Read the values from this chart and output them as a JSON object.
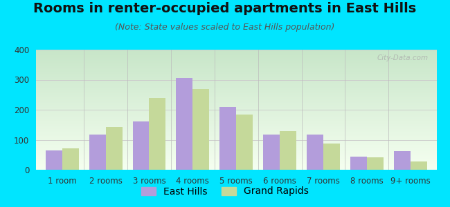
{
  "title": "Rooms in renter-occupied apartments in East Hills",
  "subtitle": "(Note: State values scaled to East Hills population)",
  "categories": [
    "1 room",
    "2 rooms",
    "3 rooms",
    "4 rooms",
    "5 rooms",
    "6 rooms",
    "7 rooms",
    "8 rooms",
    "9+ rooms"
  ],
  "east_hills": [
    65,
    118,
    160,
    305,
    210,
    117,
    118,
    43,
    62
  ],
  "grand_rapids": [
    72,
    142,
    238,
    268,
    184,
    128,
    87,
    42,
    27
  ],
  "east_hills_color": "#b39ddb",
  "grand_rapids_color": "#c5d99a",
  "background_color": "#00e5ff",
  "ylim": [
    0,
    400
  ],
  "yticks": [
    0,
    100,
    200,
    300,
    400
  ],
  "grid_color": "#cccccc",
  "title_fontsize": 14,
  "subtitle_fontsize": 9,
  "tick_fontsize": 8.5,
  "legend_fontsize": 10,
  "bar_width": 0.38,
  "watermark": "City-Data.com"
}
